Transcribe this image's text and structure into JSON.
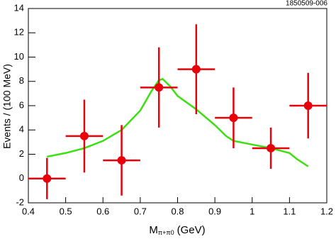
{
  "chart_data": {
    "type": "scatter",
    "annotation": "1850509-006",
    "ylabel": "Events / (100 MeV)",
    "xlabel_main": "M",
    "xlabel_subscript": "π+π0",
    "xlabel_unit": "(GeV)",
    "xlim": [
      0.4,
      1.2
    ],
    "xticks": [
      0.4,
      0.5,
      0.6,
      0.7,
      0.8,
      0.9,
      1,
      1.1,
      1.2
    ],
    "ylim": [
      -2,
      14
    ],
    "yticks": [
      -2,
      0,
      2,
      4,
      6,
      8,
      10,
      12,
      14
    ],
    "series": [
      {
        "type": "errorbar",
        "color": "#e8000b",
        "x": [
          0.45,
          0.55,
          0.65,
          0.75,
          0.85,
          0.95,
          1.05,
          1.15
        ],
        "values": [
          0,
          3.5,
          1.5,
          7.5,
          9,
          5,
          2.5,
          6
        ],
        "errors": [
          1.7,
          3,
          2.9,
          3.3,
          3.7,
          2.5,
          1.7,
          2.7
        ],
        "x_errors": [
          0.05,
          0.05,
          0.05,
          0.05,
          0.05,
          0.05,
          0.05,
          0.05
        ]
      },
      {
        "type": "line",
        "color": "#3ce010",
        "x": [
          0.45,
          0.5,
          0.55,
          0.6,
          0.65,
          0.7,
          0.73,
          0.75,
          0.76,
          0.78,
          0.8,
          0.85,
          0.9,
          0.93,
          0.95,
          1.0,
          1.05,
          1.1,
          1.12,
          1.15
        ],
        "values": [
          1.8,
          2.1,
          2.5,
          3.1,
          4.0,
          5.6,
          7.2,
          8.1,
          8.2,
          7.6,
          6.8,
          5.7,
          4.4,
          3.5,
          3.1,
          2.8,
          2.5,
          2.1,
          1.6,
          1.0
        ]
      }
    ]
  }
}
